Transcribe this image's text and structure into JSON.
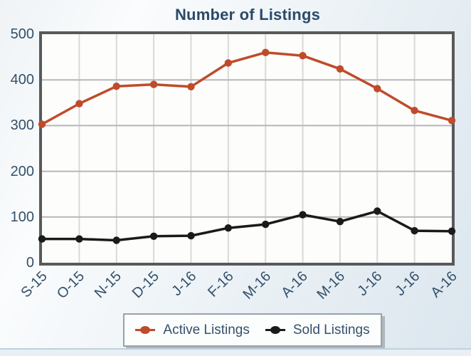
{
  "title": "Number of Listings",
  "chart_data": {
    "type": "line",
    "title": "Number of Listings",
    "categories": [
      "S-15",
      "O-15",
      "N-15",
      "D-15",
      "J-16",
      "F-16",
      "M-16",
      "A-16",
      "M-16",
      "J-16",
      "J-16",
      "A-16"
    ],
    "series": [
      {
        "name": "Active Listings",
        "color": "#bf4b2b",
        "values": [
          303,
          348,
          386,
          390,
          385,
          437,
          460,
          453,
          424,
          381,
          333,
          311
        ]
      },
      {
        "name": "Sold Listings",
        "color": "#1a1a1a",
        "values": [
          52,
          52,
          49,
          58,
          59,
          76,
          84,
          105,
          90,
          113,
          70,
          69
        ]
      }
    ],
    "xlabel": "",
    "ylabel": "",
    "ylim": [
      0,
      500
    ],
    "yticks": [
      0,
      100,
      200,
      300,
      400,
      500
    ],
    "grid": true,
    "legend_position": "bottom",
    "colors": {
      "title_text": "#2b4a68",
      "axis_text": "#33506b",
      "plot_border": "#57595b",
      "vgrid": "#d9d9d9",
      "hgrid": "#b5b7b9",
      "plot_bg": "#fdfdfb"
    }
  }
}
